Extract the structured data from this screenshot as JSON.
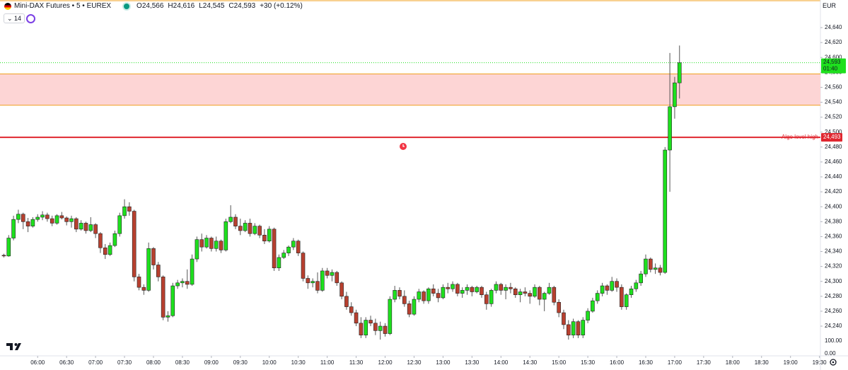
{
  "header": {
    "title": "Mini-DAX Futures • 5 • EUREX",
    "open": "O24,566",
    "high": "H24,616",
    "low": "L24,545",
    "close": "C24,593",
    "change": "+30 (+0.12%)",
    "indicator": "14",
    "currency": "EUR"
  },
  "chart_data": {
    "type": "candlestick",
    "grid": false,
    "up_color": "#1ee01e",
    "down_color": "#b8402f",
    "xlim": [
      "05:21",
      "19:31"
    ],
    "xticks": [
      "06:00",
      "06:30",
      "07:00",
      "07:30",
      "08:00",
      "08:30",
      "09:00",
      "09:30",
      "10:00",
      "10:30",
      "11:00",
      "11:30",
      "12:00",
      "12:30",
      "13:00",
      "13:30",
      "14:00",
      "14:30",
      "15:00",
      "15:30",
      "16:00",
      "16:30",
      "17:00",
      "17:30",
      "18:00",
      "18:30",
      "19:00",
      "19:30"
    ],
    "ylim": [
      24222,
      24677
    ],
    "yticks": [
      {
        "value": 24640,
        "label": "24,640"
      },
      {
        "value": 24620,
        "label": "24,620"
      },
      {
        "value": 24600,
        "label": "24,600"
      },
      {
        "value": 24580,
        "label": "24,580"
      },
      {
        "value": 24560,
        "label": "24,560"
      },
      {
        "value": 24540,
        "label": "24,540"
      },
      {
        "value": 24520,
        "label": "24,520"
      },
      {
        "value": 24500,
        "label": "24,500"
      },
      {
        "value": 24480,
        "label": "24,480"
      },
      {
        "value": 24460,
        "label": "24,460"
      },
      {
        "value": 24440,
        "label": "24,440"
      },
      {
        "value": 24420,
        "label": "24,420"
      },
      {
        "value": 24400,
        "label": "24,400"
      },
      {
        "value": 24380,
        "label": "24,380"
      },
      {
        "value": 24360,
        "label": "24,360"
      },
      {
        "value": 24340,
        "label": "24,340"
      },
      {
        "value": 24320,
        "label": "24,320"
      },
      {
        "value": 24300,
        "label": "24,300"
      },
      {
        "value": 24280,
        "label": "24,280"
      },
      {
        "value": 24260,
        "label": "24,260"
      },
      {
        "value": 24240,
        "label": "24,240"
      }
    ],
    "volume_ticks": [
      "100.00",
      "0.00"
    ],
    "zone": {
      "ylim": [
        24536,
        24578
      ],
      "color": "#fdd5d5",
      "edge_color": "#f0a020"
    },
    "level": {
      "name": "Algo level high",
      "value": 24493,
      "label": "24,493",
      "color": "#e0262f"
    },
    "last_price": {
      "value": 24593,
      "label": "24,593",
      "countdown": "01:40",
      "color": "#1ee01e"
    },
    "x": [
      "05:25",
      "05:30",
      "05:35",
      "05:40",
      "05:45",
      "05:50",
      "05:55",
      "06:00",
      "06:05",
      "06:10",
      "06:15",
      "06:20",
      "06:25",
      "06:30",
      "06:35",
      "06:40",
      "06:45",
      "06:50",
      "06:55",
      "07:00",
      "07:05",
      "07:10",
      "07:15",
      "07:20",
      "07:25",
      "07:30",
      "07:35",
      "07:40",
      "07:45",
      "07:50",
      "07:55",
      "08:00",
      "08:05",
      "08:10",
      "08:15",
      "08:20",
      "08:25",
      "08:30",
      "08:35",
      "08:40",
      "08:45",
      "08:50",
      "08:55",
      "09:00",
      "09:05",
      "09:10",
      "09:15",
      "09:20",
      "09:25",
      "09:30",
      "09:35",
      "09:40",
      "09:45",
      "09:50",
      "09:55",
      "10:00",
      "10:05",
      "10:10",
      "10:15",
      "10:20",
      "10:25",
      "10:30",
      "10:35",
      "10:40",
      "10:45",
      "10:50",
      "10:55",
      "11:00",
      "11:05",
      "11:10",
      "11:15",
      "11:20",
      "11:25",
      "11:30",
      "11:35",
      "11:40",
      "11:45",
      "11:50",
      "11:55",
      "12:00",
      "12:05",
      "12:10",
      "12:15",
      "12:20",
      "12:25",
      "12:30",
      "12:35",
      "12:40",
      "12:45",
      "12:50",
      "12:55",
      "13:00",
      "13:05",
      "13:10",
      "13:15",
      "13:20",
      "13:25",
      "13:30",
      "13:35",
      "13:40",
      "13:45",
      "13:50",
      "13:55",
      "14:00",
      "14:05",
      "14:10",
      "14:15",
      "14:20",
      "14:25",
      "14:30",
      "14:35",
      "14:40",
      "14:45",
      "14:50",
      "14:55",
      "15:00",
      "15:05",
      "15:10",
      "15:15",
      "15:20",
      "15:25",
      "15:30",
      "15:35",
      "15:40",
      "15:45",
      "15:50",
      "15:55",
      "16:00",
      "16:05",
      "16:10",
      "16:15",
      "16:20",
      "16:25",
      "16:30",
      "16:35",
      "16:40",
      "16:45",
      "16:50",
      "16:55",
      "17:00",
      "17:05"
    ],
    "open": [
      24335,
      24334,
      24358,
      24383,
      24390,
      24380,
      24374,
      24383,
      24386,
      24389,
      24384,
      24378,
      24388,
      24385,
      24380,
      24384,
      24370,
      24378,
      24368,
      24376,
      24364,
      24345,
      24336,
      24348,
      24364,
      24388,
      24400,
      24394,
      24306,
      24292,
      24288,
      24344,
      24322,
      24306,
      24252,
      24254,
      24294,
      24298,
      24300,
      24296,
      24330,
      24356,
      24346,
      24358,
      24344,
      24354,
      24342,
      24380,
      24386,
      24374,
      24368,
      24378,
      24364,
      24374,
      24362,
      24354,
      24370,
      24318,
      24332,
      24338,
      24346,
      24354,
      24338,
      24304,
      24298,
      24300,
      24288,
      24314,
      24308,
      24312,
      24298,
      24280,
      24266,
      24258,
      24244,
      24228,
      24248,
      24244,
      24234,
      24240,
      24230,
      24276,
      24288,
      24280,
      24270,
      24256,
      24276,
      24286,
      24274,
      24290,
      24284,
      24278,
      24292,
      24290,
      24296,
      24284,
      24288,
      24292,
      24286,
      24292,
      24282,
      24270,
      24288,
      24296,
      24288,
      24292,
      24290,
      24282,
      24286,
      24284,
      24280,
      24292,
      24276,
      24284,
      24292,
      24272,
      24258,
      24242,
      24228,
      24246,
      24228,
      24248,
      24260,
      24274,
      24284,
      24294,
      24288,
      24300,
      24292,
      24266,
      24282,
      24290,
      24298,
      24310,
      24330,
      24316,
      24318,
      24312,
      24476,
      24534,
      24566
    ],
    "high": [
      24337,
      24362,
      24388,
      24396,
      24392,
      24385,
      24386,
      24390,
      24394,
      24392,
      24388,
      24390,
      24393,
      24387,
      24388,
      24386,
      24382,
      24380,
      24386,
      24378,
      24366,
      24350,
      24352,
      24368,
      24392,
      24410,
      24406,
      24396,
      24310,
      24296,
      24352,
      24346,
      24326,
      24308,
      24260,
      24298,
      24302,
      24304,
      24316,
      24336,
      24360,
      24364,
      24362,
      24360,
      24360,
      24356,
      24384,
      24402,
      24390,
      24384,
      24382,
      24384,
      24378,
      24376,
      24370,
      24374,
      24372,
      24336,
      24342,
      24348,
      24358,
      24356,
      24340,
      24308,
      24304,
      24312,
      24318,
      24318,
      24316,
      24314,
      24300,
      24286,
      24272,
      24262,
      24252,
      24252,
      24254,
      24250,
      24246,
      24244,
      24280,
      24294,
      24292,
      24288,
      24274,
      24280,
      24290,
      24288,
      24292,
      24296,
      24290,
      24296,
      24298,
      24300,
      24298,
      24292,
      24296,
      24294,
      24294,
      24294,
      24286,
      24290,
      24300,
      24298,
      24296,
      24298,
      24292,
      24290,
      24292,
      24288,
      24296,
      24294,
      24286,
      24298,
      24294,
      24276,
      24262,
      24248,
      24250,
      24248,
      24252,
      24264,
      24278,
      24288,
      24298,
      24296,
      24306,
      24304,
      24296,
      24284,
      24294,
      24302,
      24314,
      24336,
      24332,
      24324,
      24322,
      24480,
      24606,
      24574,
      24616
    ],
    "low": [
      24332,
      24333,
      24355,
      24378,
      24370,
      24366,
      24372,
      24380,
      24382,
      24380,
      24374,
      24376,
      24383,
      24375,
      24372,
      24366,
      24368,
      24364,
      24366,
      24358,
      24338,
      24330,
      24334,
      24346,
      24360,
      24384,
      24388,
      24300,
      24288,
      24282,
      24286,
      24316,
      24300,
      24248,
      24246,
      24252,
      24290,
      24292,
      24290,
      24294,
      24326,
      24340,
      24344,
      24340,
      24340,
      24338,
      24340,
      24378,
      24370,
      24362,
      24366,
      24360,
      24362,
      24358,
      24350,
      24352,
      24314,
      24314,
      24330,
      24334,
      24342,
      24334,
      24300,
      24290,
      24292,
      24284,
      24286,
      24304,
      24300,
      24294,
      24276,
      24262,
      24254,
      24240,
      24224,
      24224,
      24240,
      24228,
      24222,
      24226,
      24228,
      24272,
      24276,
      24266,
      24252,
      24254,
      24272,
      24270,
      24270,
      24280,
      24272,
      24276,
      24284,
      24286,
      24280,
      24278,
      24282,
      24280,
      24284,
      24278,
      24262,
      24266,
      24284,
      24282,
      24276,
      24284,
      24278,
      24272,
      24280,
      24270,
      24278,
      24268,
      24260,
      24282,
      24268,
      24252,
      24236,
      24222,
      24224,
      24224,
      24224,
      24244,
      24258,
      24270,
      24280,
      24282,
      24286,
      24286,
      24262,
      24262,
      24278,
      24286,
      24294,
      24306,
      24312,
      24310,
      24308,
      24310,
      24420,
      24518,
      24545
    ],
    "close": [
      24334,
      24358,
      24383,
      24390,
      24380,
      24374,
      24383,
      24386,
      24389,
      24384,
      24378,
      24388,
      24385,
      24380,
      24384,
      24370,
      24378,
      24368,
      24376,
      24364,
      24345,
      24336,
      24348,
      24364,
      24388,
      24400,
      24394,
      24306,
      24292,
      24288,
      24344,
      24322,
      24306,
      24252,
      24254,
      24294,
      24298,
      24300,
      24296,
      24330,
      24356,
      24346,
      24358,
      24344,
      24354,
      24342,
      24380,
      24386,
      24374,
      24368,
      24378,
      24364,
      24374,
      24362,
      24354,
      24370,
      24318,
      24332,
      24338,
      24346,
      24354,
      24338,
      24304,
      24298,
      24300,
      24288,
      24314,
      24308,
      24312,
      24298,
      24280,
      24266,
      24258,
      24244,
      24228,
      24248,
      24244,
      24234,
      24240,
      24230,
      24276,
      24288,
      24280,
      24270,
      24256,
      24276,
      24286,
      24274,
      24290,
      24284,
      24278,
      24292,
      24290,
      24296,
      24284,
      24288,
      24292,
      24286,
      24292,
      24282,
      24270,
      24288,
      24296,
      24288,
      24292,
      24290,
      24282,
      24286,
      24284,
      24280,
      24292,
      24276,
      24284,
      24292,
      24272,
      24258,
      24242,
      24228,
      24246,
      24228,
      24248,
      24260,
      24274,
      24284,
      24294,
      24288,
      24300,
      24292,
      24266,
      24282,
      24290,
      24298,
      24310,
      24330,
      24316,
      24318,
      24312,
      24476,
      24534,
      24566,
      24593
    ]
  }
}
